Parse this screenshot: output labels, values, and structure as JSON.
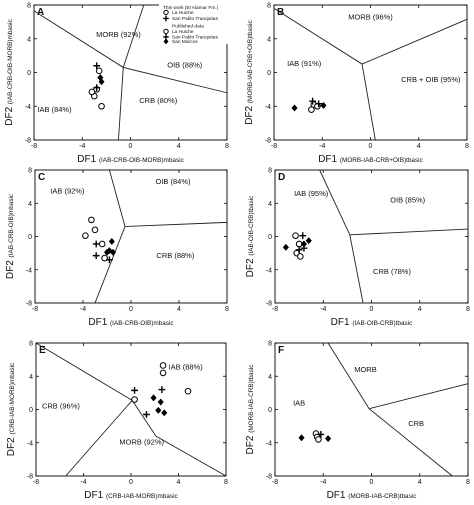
{
  "legend": {
    "heading": "This work (El Alamar Fm.)",
    "published_heading": "Published data",
    "entries": [
      {
        "marker": "circle",
        "label": "La Huiche"
      },
      {
        "marker": "cross",
        "label": "San Pablo Tranquitas"
      },
      {
        "marker": "circle",
        "label": "La Huiche"
      },
      {
        "marker": "cross",
        "label": "San Pablo Tranquitas"
      },
      {
        "marker": "diamond",
        "label": "San Marcos"
      }
    ]
  },
  "panels": [
    {
      "letter": "A",
      "xlabel": "DF1",
      "xlabel_sub": "(IAB-CRB-OIB-MORB)mbasic",
      "ylabel": "DF2",
      "ylabel_sub": "(IAB-CRB-OIB-MORB)mbasic",
      "xlim": [
        -8,
        8
      ],
      "ylim": [
        -8,
        8
      ],
      "xticks": [
        "-8",
        "-4",
        "0",
        "4",
        "8"
      ],
      "yticks": [
        "8",
        "4",
        "0",
        "-4",
        "-8"
      ],
      "regions": [
        {
          "label": "MORB (92%)",
          "x": -1.0,
          "y": 4.2
        },
        {
          "label": "OIB (88%)",
          "x": 4.5,
          "y": 0.6
        },
        {
          "label": "CRB (80%)",
          "x": 2.3,
          "y": -3.6
        },
        {
          "label": "IAB (84%)",
          "x": -6.3,
          "y": -4.7
        }
      ],
      "points": [
        {
          "m": "circle",
          "x": -3.0,
          "y": -2.8
        },
        {
          "m": "circle",
          "x": -2.4,
          "y": -4.0
        },
        {
          "m": "circle",
          "x": -2.8,
          "y": -2.0
        },
        {
          "m": "circle",
          "x": -3.2,
          "y": -2.3
        },
        {
          "m": "circle",
          "x": -2.6,
          "y": 0.2
        },
        {
          "m": "cross",
          "x": -2.8,
          "y": -1.8
        },
        {
          "m": "cross",
          "x": -2.8,
          "y": 0.8
        },
        {
          "m": "diamond",
          "x": -2.5,
          "y": -0.6
        },
        {
          "m": "diamond",
          "x": -2.4,
          "y": -1.1
        }
      ]
    },
    {
      "letter": "B",
      "xlabel": "DF1",
      "xlabel_sub": "(MORB-IAB-CRB+OIB)tbasic",
      "ylabel": "DF2",
      "ylabel_sub": "(MORB-IAB-CRB+OIB)tbasic",
      "xlim": [
        -8,
        8
      ],
      "ylim": [
        -8,
        8
      ],
      "xticks": [
        "-8",
        "-4",
        "0",
        "4",
        "8"
      ],
      "yticks": [
        "8",
        "4",
        "0",
        "-4",
        "-8"
      ],
      "regions": [
        {
          "label": "MORB (96%)",
          "x": 0.0,
          "y": 6.3
        },
        {
          "label": "IAB (91%)",
          "x": -5.5,
          "y": 0.8
        },
        {
          "label": "CRB + OIB (95%)",
          "x": 5.0,
          "y": -1.1
        }
      ],
      "points": [
        {
          "m": "circle",
          "x": -4.9,
          "y": -4.4
        },
        {
          "m": "circle",
          "x": -4.7,
          "y": -3.8
        },
        {
          "m": "circle",
          "x": -4.4,
          "y": -4.0
        },
        {
          "m": "cross",
          "x": -4.8,
          "y": -3.4
        },
        {
          "m": "cross",
          "x": -4.3,
          "y": -3.7
        },
        {
          "m": "diamond",
          "x": -6.3,
          "y": -4.2
        },
        {
          "m": "diamond",
          "x": -3.9,
          "y": -3.9
        }
      ]
    },
    {
      "letter": "C",
      "xlabel": "DF1",
      "xlabel_sub": "(IAB-CRB-OIB)mbasic",
      "ylabel": "DF2",
      "ylabel_sub": "(IAB-CRB-OIB)mbasic",
      "xlim": [
        -8,
        8
      ],
      "ylim": [
        -8,
        8
      ],
      "xticks": [
        "-8",
        "-4",
        "0",
        "4",
        "8"
      ],
      "yticks": [
        "8",
        "4",
        "0",
        "-4",
        "-8"
      ],
      "regions": [
        {
          "label": "IAB (92%)",
          "x": -5.3,
          "y": 5.2
        },
        {
          "label": "OIB (84%)",
          "x": 3.5,
          "y": 6.3
        },
        {
          "label": "CRB (88%)",
          "x": 3.7,
          "y": -2.6
        }
      ],
      "points": [
        {
          "m": "circle",
          "x": -3.3,
          "y": 2.0
        },
        {
          "m": "circle",
          "x": -3.0,
          "y": 0.8
        },
        {
          "m": "circle",
          "x": -3.8,
          "y": 0.1
        },
        {
          "m": "circle",
          "x": -2.4,
          "y": -0.9
        },
        {
          "m": "circle",
          "x": -2.2,
          "y": -2.6
        },
        {
          "m": "cross",
          "x": -2.9,
          "y": -0.9
        },
        {
          "m": "cross",
          "x": -2.9,
          "y": -2.3
        },
        {
          "m": "cross",
          "x": -1.8,
          "y": -2.8
        },
        {
          "m": "diamond",
          "x": -1.6,
          "y": -0.6
        },
        {
          "m": "diamond",
          "x": -1.8,
          "y": -1.7
        },
        {
          "m": "diamond",
          "x": -2.0,
          "y": -1.9
        },
        {
          "m": "diamond",
          "x": -1.5,
          "y": -1.9
        }
      ]
    },
    {
      "letter": "D",
      "xlabel": "DF1",
      "xlabel_sub": "(IAB-OIB-CRB)tbasic",
      "ylabel": "DF2",
      "ylabel_sub": "(IAB-OIB-CRB)tbasic",
      "xlim": [
        -8,
        8
      ],
      "ylim": [
        -8,
        8
      ],
      "xticks": [
        "-8",
        "-4",
        "0",
        "4",
        "8"
      ],
      "yticks": [
        "8",
        "4",
        "0",
        "-4",
        "-8"
      ],
      "regions": [
        {
          "label": "IAB (95%)",
          "x": -5.0,
          "y": 4.9
        },
        {
          "label": "OIB (85%)",
          "x": 3.0,
          "y": 4.1
        },
        {
          "label": "CRB (78%)",
          "x": 1.7,
          "y": -4.5
        }
      ],
      "points": [
        {
          "m": "circle",
          "x": -6.3,
          "y": 0.1
        },
        {
          "m": "circle",
          "x": -6.0,
          "y": -0.9
        },
        {
          "m": "circle",
          "x": -6.2,
          "y": -2.0
        },
        {
          "m": "circle",
          "x": -5.9,
          "y": -2.4
        },
        {
          "m": "cross",
          "x": -5.7,
          "y": 0.1
        },
        {
          "m": "cross",
          "x": -5.6,
          "y": -1.4
        },
        {
          "m": "cross",
          "x": -6.0,
          "y": -1.6
        },
        {
          "m": "diamond",
          "x": -7.1,
          "y": -1.3
        },
        {
          "m": "diamond",
          "x": -5.2,
          "y": -0.5
        },
        {
          "m": "diamond",
          "x": -5.6,
          "y": -0.9
        }
      ]
    },
    {
      "letter": "E",
      "xlabel": "DF1",
      "xlabel_sub": "(CRB-IAB-MORB)mbasic",
      "ylabel": "DF2",
      "ylabel_sub": "(CRB-IAB-MORB)mbasic",
      "xlim": [
        -8,
        8
      ],
      "ylim": [
        -8,
        8
      ],
      "xticks": [
        "-8",
        "-4",
        "0",
        "4",
        "8"
      ],
      "yticks": [
        "8",
        "4",
        "0",
        "-4",
        "-8"
      ],
      "regions": [
        {
          "label": "IAB (88%)",
          "x": 4.6,
          "y": 4.8
        },
        {
          "label": "CRB (96%)",
          "x": -5.9,
          "y": 0.1
        },
        {
          "label": "MORB (92%)",
          "x": 0.9,
          "y": -4.2
        }
      ],
      "points": [
        {
          "m": "circle",
          "x": 2.7,
          "y": 5.3
        },
        {
          "m": "circle",
          "x": 2.7,
          "y": 4.4
        },
        {
          "m": "circle",
          "x": 4.8,
          "y": 2.2
        },
        {
          "m": "circle",
          "x": 0.3,
          "y": 1.2
        },
        {
          "m": "cross",
          "x": 0.3,
          "y": 2.3
        },
        {
          "m": "cross",
          "x": 2.6,
          "y": 2.4
        },
        {
          "m": "cross",
          "x": 1.3,
          "y": -0.6
        },
        {
          "m": "diamond",
          "x": 1.9,
          "y": 1.4
        },
        {
          "m": "diamond",
          "x": 2.5,
          "y": 0.9
        },
        {
          "m": "diamond",
          "x": 2.3,
          "y": -0.1
        },
        {
          "m": "diamond",
          "x": 2.8,
          "y": -0.4
        }
      ]
    },
    {
      "letter": "F",
      "xlabel": "DF1",
      "xlabel_sub": "(MORB-IAB-CRB)tbasic",
      "ylabel": "DF2",
      "ylabel_sub": "(MORB-IAB-CRB)tbasic",
      "xlim": [
        -8,
        8
      ],
      "ylim": [
        -8,
        8
      ],
      "xticks": [
        "-8",
        "-4",
        "0",
        "4",
        "8"
      ],
      "yticks": [
        "8",
        "4",
        "0",
        "-4",
        "-8"
      ],
      "regions": [
        {
          "label": "MORB",
          "x": -0.5,
          "y": 4.5
        },
        {
          "label": "IAB",
          "x": -6.0,
          "y": 0.5
        },
        {
          "label": "CRB",
          "x": 3.7,
          "y": -2.0
        }
      ],
      "points": [
        {
          "m": "circle",
          "x": -4.6,
          "y": -2.9
        },
        {
          "m": "circle",
          "x": -4.5,
          "y": -3.3
        },
        {
          "m": "circle",
          "x": -4.4,
          "y": -3.6
        },
        {
          "m": "cross",
          "x": -4.2,
          "y": -3.0
        },
        {
          "m": "diamond",
          "x": -5.8,
          "y": -3.4
        },
        {
          "m": "diamond",
          "x": -3.6,
          "y": -3.5
        }
      ]
    }
  ]
}
